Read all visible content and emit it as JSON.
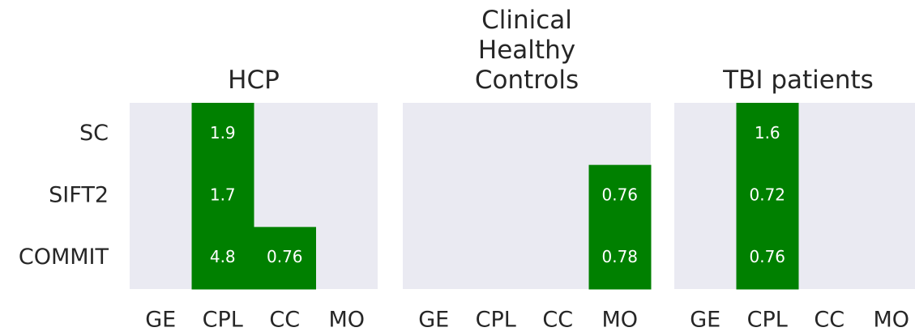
{
  "chart_data": [
    {
      "type": "heatmap",
      "title": "HCP",
      "y_categories": [
        "SC",
        "SIFT2",
        "COMMIT"
      ],
      "categories": [
        "GE",
        "CPL",
        "CC",
        "MO"
      ],
      "values": [
        [
          null,
          1.9,
          null,
          null
        ],
        [
          null,
          1.7,
          null,
          null
        ],
        [
          null,
          4.8,
          0.76,
          null
        ]
      ],
      "color": "#008000",
      "background": "#eaeaf2"
    },
    {
      "type": "heatmap",
      "title": "Clinical\nHealthy\nControls",
      "categories": [
        "GE",
        "CPL",
        "CC",
        "MO"
      ],
      "values": [
        [
          null,
          null,
          null,
          null
        ],
        [
          null,
          null,
          null,
          0.76
        ],
        [
          null,
          null,
          null,
          0.78
        ]
      ],
      "color": "#008000",
      "background": "#eaeaf2"
    },
    {
      "type": "heatmap",
      "title": "TBI patients",
      "categories": [
        "GE",
        "CPL",
        "CC",
        "MO"
      ],
      "values": [
        [
          null,
          1.6,
          null,
          null
        ],
        [
          null,
          0.72,
          null,
          null
        ],
        [
          null,
          0.76,
          null,
          null
        ]
      ],
      "color": "#008000",
      "background": "#eaeaf2"
    }
  ]
}
